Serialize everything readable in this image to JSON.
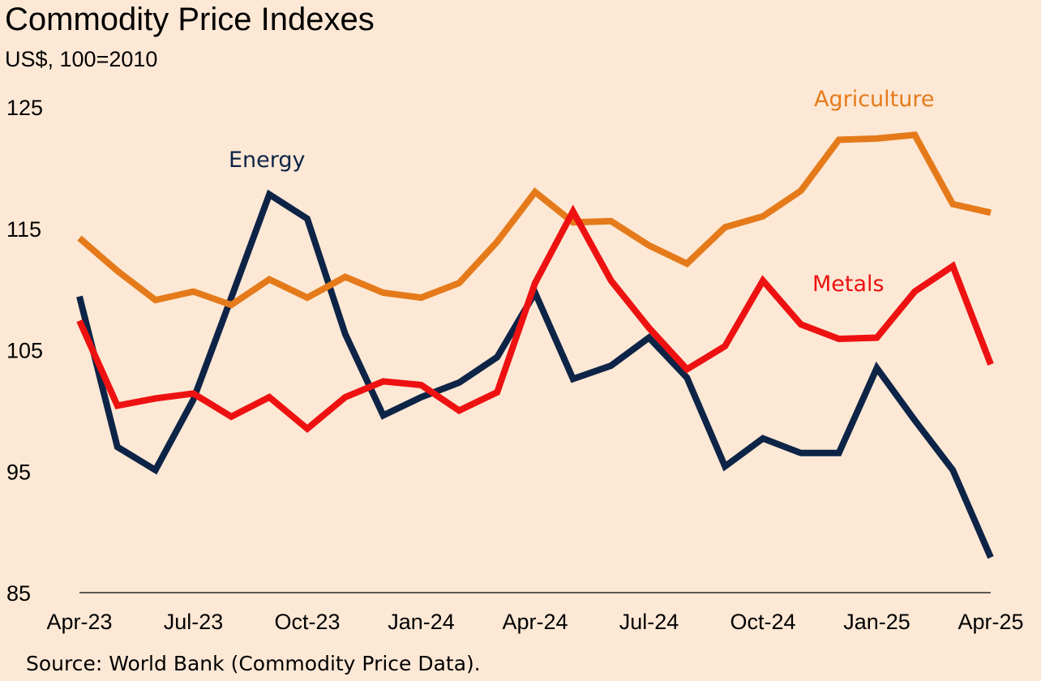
{
  "title": "Commodity Price Indexes",
  "subtitle": "US$, 100=2010",
  "source": "Source: World Bank (Commodity Price Data).",
  "colors": {
    "background": "#fde8d5",
    "Energy": "#0d2447",
    "Agriculture": "#e57a1a",
    "Metals": "#ee1111",
    "axis": "#000000"
  },
  "chart_data": {
    "type": "line",
    "title": "Commodity Price Indexes",
    "subtitle": "US$, 100=2010",
    "xlabel": "",
    "ylabel": "",
    "ylim": [
      85,
      125
    ],
    "yticks": [
      85,
      95,
      105,
      115,
      125
    ],
    "grid": false,
    "legend": "none (series labelled directly on chart)",
    "x": [
      "Apr-23",
      "May-23",
      "Jun-23",
      "Jul-23",
      "Aug-23",
      "Sep-23",
      "Oct-23",
      "Nov-23",
      "Dec-23",
      "Jan-24",
      "Feb-24",
      "Mar-24",
      "Apr-24",
      "May-24",
      "Jun-24",
      "Jul-24",
      "Aug-24",
      "Sep-24",
      "Oct-24",
      "Nov-24",
      "Dec-24",
      "Jan-25",
      "Feb-25",
      "Mar-25",
      "Apr-25"
    ],
    "xtick_labels": [
      "Apr-23",
      "Jul-23",
      "Oct-23",
      "Jan-24",
      "Apr-24",
      "Jul-24",
      "Oct-24",
      "Jan-25",
      "Apr-25"
    ],
    "series": [
      {
        "name": "Energy",
        "values": [
          109.4,
          97.0,
          95.1,
          100.9,
          109.3,
          117.8,
          115.8,
          106.3,
          99.6,
          101.1,
          102.3,
          104.4,
          109.7,
          102.6,
          103.7,
          106.0,
          102.7,
          95.4,
          97.7,
          96.5,
          96.5,
          103.5,
          99.2,
          95.1,
          87.9
        ]
      },
      {
        "name": "Agriculture",
        "values": [
          114.2,
          111.5,
          109.1,
          109.8,
          108.7,
          110.8,
          109.3,
          111.0,
          109.7,
          109.3,
          110.5,
          113.9,
          118.0,
          115.5,
          115.6,
          113.6,
          112.1,
          115.1,
          116.0,
          118.1,
          122.3,
          122.4,
          122.7,
          117.0,
          116.3
        ]
      },
      {
        "name": "Metals",
        "values": [
          107.4,
          100.4,
          101.0,
          101.4,
          99.5,
          101.1,
          98.5,
          101.1,
          102.4,
          102.1,
          100.0,
          101.5,
          110.5,
          116.4,
          110.7,
          106.8,
          103.4,
          105.3,
          110.7,
          107.1,
          105.9,
          106.0,
          109.8,
          111.9,
          103.8
        ]
      }
    ],
    "annotations": [
      {
        "text": "Energy",
        "series": "Energy"
      },
      {
        "text": "Agriculture",
        "series": "Agriculture"
      },
      {
        "text": "Metals",
        "series": "Metals"
      }
    ]
  }
}
